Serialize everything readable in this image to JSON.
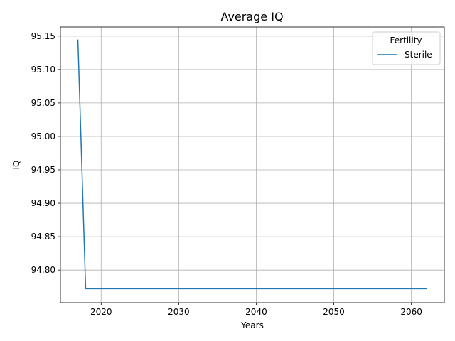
{
  "chart_data": {
    "type": "line",
    "title": "Average IQ",
    "xlabel": "Years",
    "ylabel": "IQ",
    "xlim": [
      2014.75,
      2064.25
    ],
    "ylim": [
      94.7513,
      95.1636
    ],
    "xticks": [
      2020,
      2030,
      2040,
      2050,
      2060
    ],
    "yticks": [
      94.8,
      94.85,
      94.9,
      94.95,
      95.0,
      95.05,
      95.1,
      95.15
    ],
    "ytick_labels": [
      "94.80",
      "94.85",
      "94.90",
      "94.95",
      "95.00",
      "95.05",
      "95.10",
      "95.15"
    ],
    "grid": true,
    "legend": {
      "title": "Fertility",
      "placement": "top-right"
    },
    "series": [
      {
        "name": "Sterile",
        "color": "#1f77b4",
        "x": [
          2017,
          2018,
          2062
        ],
        "y": [
          95.1449,
          94.7721,
          94.7721
        ]
      }
    ]
  }
}
